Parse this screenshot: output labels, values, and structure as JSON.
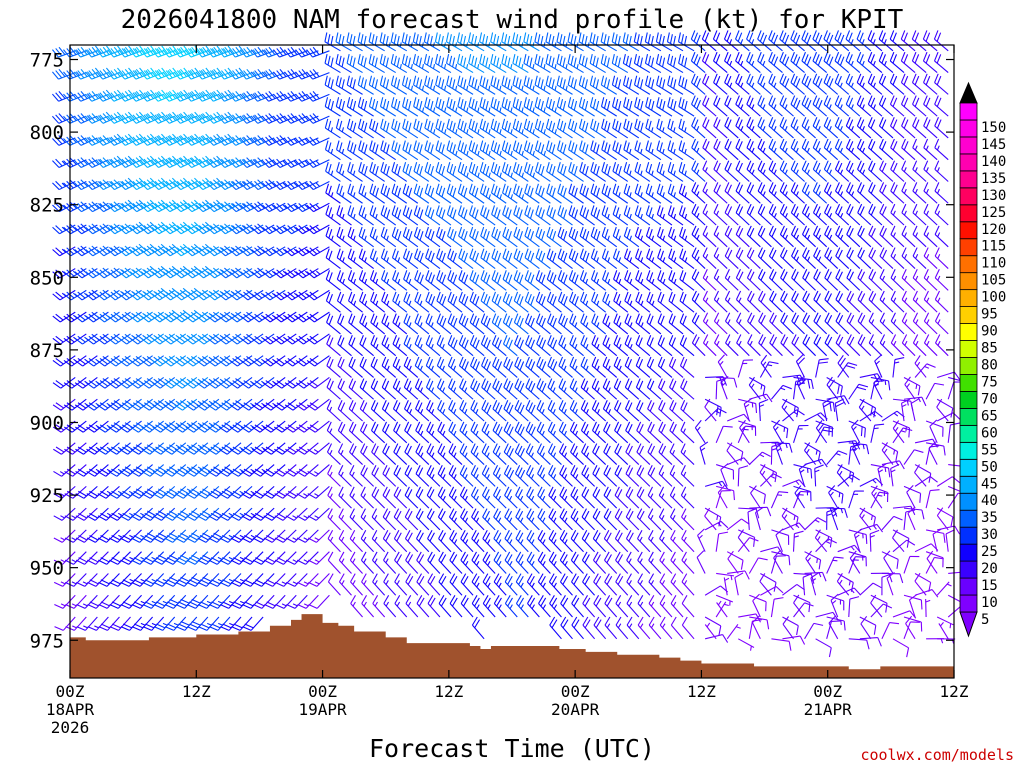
{
  "chart_data": {
    "type": "wind-barb time-height profile",
    "title": "2026041800 NAM forecast wind profile (kt) for KPIT",
    "xlabel": "Forecast Time (UTC)",
    "ylabel": "",
    "credit": "coolwx.com/models",
    "x_range_hours": [
      0,
      84
    ],
    "y_range_hpa": [
      770,
      988
    ],
    "y_axis_inverted": true,
    "yticks": [
      775,
      800,
      825,
      850,
      875,
      900,
      925,
      950,
      975
    ],
    "xticks": [
      {
        "hour": 0,
        "line1": "00Z",
        "line2": "18APR",
        "line3": "2026"
      },
      {
        "hour": 12,
        "line1": "12Z",
        "line2": "",
        "line3": ""
      },
      {
        "hour": 24,
        "line1": "00Z",
        "line2": "19APR",
        "line3": ""
      },
      {
        "hour": 36,
        "line1": "12Z",
        "line2": "",
        "line3": ""
      },
      {
        "hour": 48,
        "line1": "00Z",
        "line2": "20APR",
        "line3": ""
      },
      {
        "hour": 60,
        "line1": "12Z",
        "line2": "",
        "line3": ""
      },
      {
        "hour": 72,
        "line1": "00Z",
        "line2": "21APR",
        "line3": ""
      },
      {
        "hour": 84,
        "line1": "12Z",
        "line2": "",
        "line3": ""
      }
    ],
    "colorbar": {
      "units": "kt",
      "labels": [
        5,
        10,
        15,
        20,
        25,
        30,
        35,
        40,
        45,
        50,
        55,
        60,
        65,
        70,
        75,
        80,
        85,
        90,
        95,
        100,
        105,
        110,
        115,
        120,
        125,
        130,
        135,
        140,
        145,
        150
      ],
      "colors": [
        "#8000ff",
        "#6a00ff",
        "#3a00ff",
        "#1000ff",
        "#0030ff",
        "#0060ff",
        "#0090ff",
        "#00b0ff",
        "#00d0ff",
        "#00f0e0",
        "#00f0a0",
        "#00e060",
        "#00d020",
        "#40e000",
        "#90f000",
        "#d0ff00",
        "#ffff00",
        "#ffd000",
        "#ffb000",
        "#ff9000",
        "#ff7000",
        "#ff4000",
        "#ff1000",
        "#ff0030",
        "#ff0060",
        "#ff0090",
        "#ff00b0",
        "#ff00d0",
        "#ff00e8",
        "#ff00ff"
      ],
      "under_color": "#8000ff",
      "over_color": "#000000"
    },
    "terrain_color": "#a0522d",
    "terrain_surface_pressure": [
      {
        "hour": 0,
        "hpa": 974
      },
      {
        "hour": 1.5,
        "hpa": 975
      },
      {
        "hour": 4,
        "hpa": 975
      },
      {
        "hour": 7.5,
        "hpa": 974
      },
      {
        "hour": 12,
        "hpa": 973
      },
      {
        "hour": 16,
        "hpa": 972
      },
      {
        "hour": 19,
        "hpa": 970
      },
      {
        "hour": 21,
        "hpa": 968
      },
      {
        "hour": 22,
        "hpa": 966
      },
      {
        "hour": 24,
        "hpa": 969
      },
      {
        "hour": 25.5,
        "hpa": 970
      },
      {
        "hour": 27,
        "hpa": 972
      },
      {
        "hour": 30,
        "hpa": 974
      },
      {
        "hour": 32,
        "hpa": 976
      },
      {
        "hour": 38,
        "hpa": 977
      },
      {
        "hour": 39,
        "hpa": 978
      },
      {
        "hour": 40,
        "hpa": 977
      },
      {
        "hour": 45,
        "hpa": 977
      },
      {
        "hour": 46.5,
        "hpa": 978
      },
      {
        "hour": 49,
        "hpa": 979
      },
      {
        "hour": 52,
        "hpa": 980
      },
      {
        "hour": 56,
        "hpa": 981
      },
      {
        "hour": 58,
        "hpa": 982
      },
      {
        "hour": 60,
        "hpa": 983
      },
      {
        "hour": 65,
        "hpa": 984
      },
      {
        "hour": 74,
        "hpa": 985
      },
      {
        "hour": 77,
        "hpa": 984
      },
      {
        "hour": 81,
        "hpa": 984
      },
      {
        "hour": 84,
        "hpa": 984
      }
    ],
    "wind_regimes": [
      {
        "hours": [
          0,
          25
        ],
        "upper_speed_kt": [
          30,
          47
        ],
        "lower_speed_kt": [
          10,
          28
        ],
        "upper_from": "WSW",
        "lower_from": "SW"
      },
      {
        "hours": [
          26,
          60
        ],
        "upper_speed_kt": [
          30,
          36
        ],
        "lower_speed_kt": [
          10,
          25
        ],
        "upper_from": "WNW",
        "lower_from": "NW"
      },
      {
        "hours": [
          61,
          84
        ],
        "upper_speed_kt": [
          20,
          30
        ],
        "lower_speed_kt": [
          5,
          12
        ],
        "upper_from": "NW",
        "lower_from": "NE/variable"
      }
    ]
  }
}
